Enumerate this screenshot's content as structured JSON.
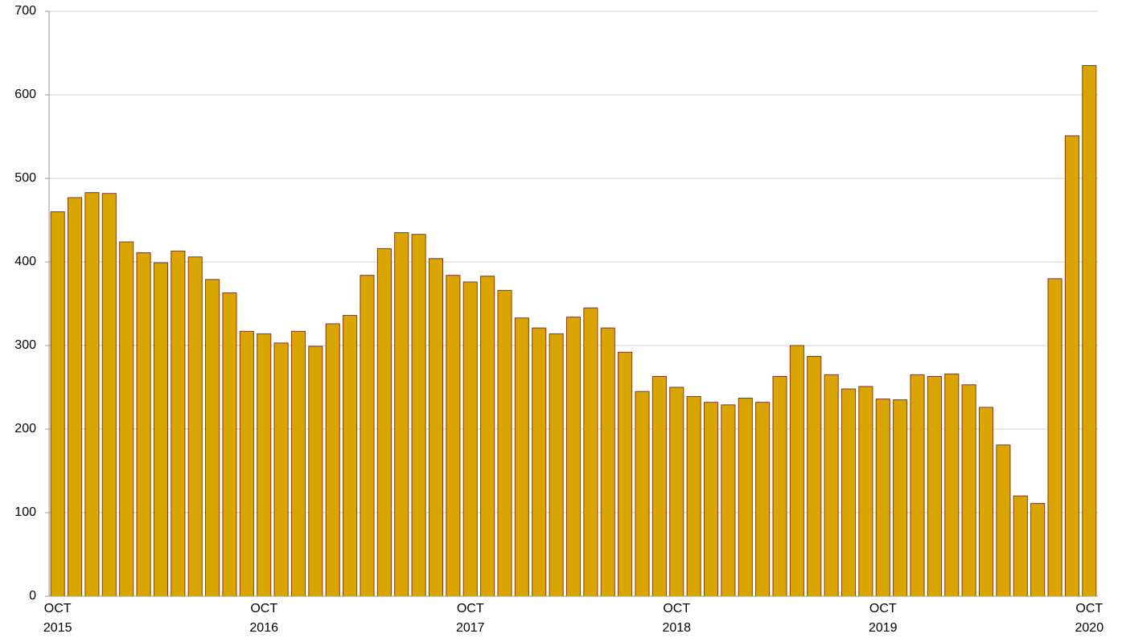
{
  "chart_data": {
    "type": "bar",
    "categories": [
      [
        "OCT",
        "2015"
      ],
      null,
      null,
      null,
      null,
      null,
      null,
      null,
      null,
      null,
      null,
      null,
      [
        "OCT",
        "2016"
      ],
      null,
      null,
      null,
      null,
      null,
      null,
      null,
      null,
      null,
      null,
      null,
      [
        "OCT",
        "2017"
      ],
      null,
      null,
      null,
      null,
      null,
      null,
      null,
      null,
      null,
      null,
      null,
      [
        "OCT",
        "2018"
      ],
      null,
      null,
      null,
      null,
      null,
      null,
      null,
      null,
      null,
      null,
      null,
      [
        "OCT",
        "2019"
      ],
      null,
      null,
      null,
      null,
      null,
      null,
      null,
      null,
      null,
      null,
      null,
      [
        "OCT",
        "2020"
      ]
    ],
    "values": [
      460,
      477,
      483,
      482,
      424,
      411,
      399,
      413,
      406,
      379,
      363,
      317,
      314,
      303,
      317,
      299,
      326,
      336,
      384,
      416,
      435,
      433,
      404,
      384,
      376,
      383,
      366,
      333,
      321,
      314,
      334,
      345,
      321,
      292,
      245,
      263,
      250,
      239,
      232,
      229,
      237,
      232,
      263,
      300,
      287,
      265,
      248,
      251,
      236,
      235,
      265,
      263,
      266,
      253,
      226,
      181,
      120,
      111,
      380,
      551,
      635
    ],
    "color": "#dba500",
    "edgecolor": "#8b3a0f",
    "ylim": [
      0,
      700
    ],
    "yticks": [
      0,
      100,
      200,
      300,
      400,
      500,
      600,
      700
    ],
    "grid": true
  }
}
